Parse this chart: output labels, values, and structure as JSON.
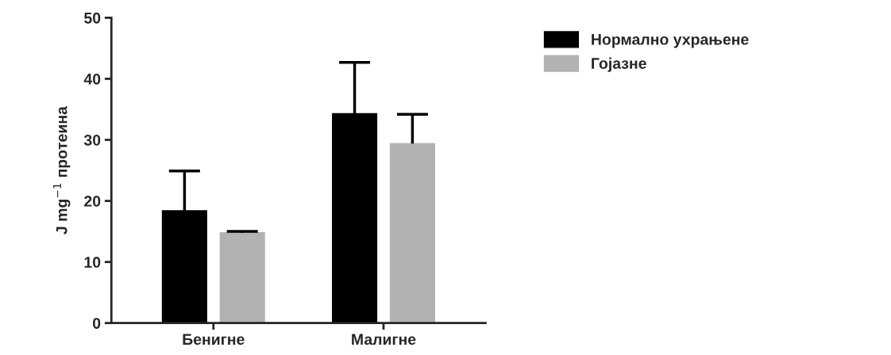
{
  "chart_data": {
    "type": "bar",
    "categories": [
      "Бенигне",
      "Малигне"
    ],
    "ylabel": "J mg$^{−1}$ протеина",
    "series": [
      {
        "name": "Нормално ухрањене",
        "color": "#000000",
        "values": [
          18.4,
          34.3
        ],
        "errors": [
          [
            18.4,
            24.9
          ],
          [
            34.3,
            42.7
          ]
        ]
      },
      {
        "name": "Гојазне",
        "color": "#b2b2b2",
        "values": [
          14.8,
          29.4
        ],
        "errors": [
          [
            14.8,
            15.0
          ],
          [
            29.4,
            34.2
          ]
        ]
      }
    ],
    "ylim": [
      0,
      50
    ],
    "yticks": [
      0,
      10,
      20,
      30,
      40,
      50
    ],
    "grid": false,
    "legend": "top right"
  }
}
